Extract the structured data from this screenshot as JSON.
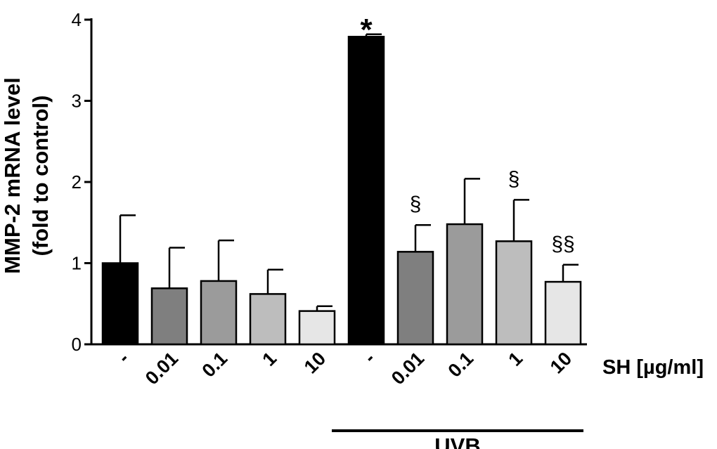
{
  "chart_data": {
    "type": "bar",
    "title": "",
    "ylabel_lines": [
      "MMP-2 mRNA level",
      "(fold to control)"
    ],
    "xlabel": "SH [µg/ml]",
    "ylim": [
      0,
      4
    ],
    "yticks": [
      "0",
      "1",
      "2",
      "3",
      "4"
    ],
    "categories": [
      "-",
      "0.01",
      "0.1",
      "1",
      "10",
      "-",
      "0.01",
      "0.1",
      "1",
      "10"
    ],
    "values": [
      1.0,
      0.69,
      0.78,
      0.62,
      0.41,
      3.79,
      1.14,
      1.48,
      1.27,
      0.77
    ],
    "errors": [
      0.59,
      0.5,
      0.5,
      0.3,
      0.06,
      0.03,
      0.33,
      0.56,
      0.51,
      0.21
    ],
    "bar_colors": [
      "#000000",
      "#7f7f7f",
      "#9b9b9b",
      "#bdbdbd",
      "#e6e6e6",
      "#000000",
      "#7f7f7f",
      "#9b9b9b",
      "#bdbdbd",
      "#e6e6e6"
    ],
    "annotations": [
      "",
      "",
      "",
      "",
      "",
      "*",
      "§",
      "",
      "§",
      "§§"
    ],
    "group": {
      "label": "UVB",
      "from_index": 5,
      "to_index": 9
    },
    "grid": false,
    "legend": "none"
  }
}
